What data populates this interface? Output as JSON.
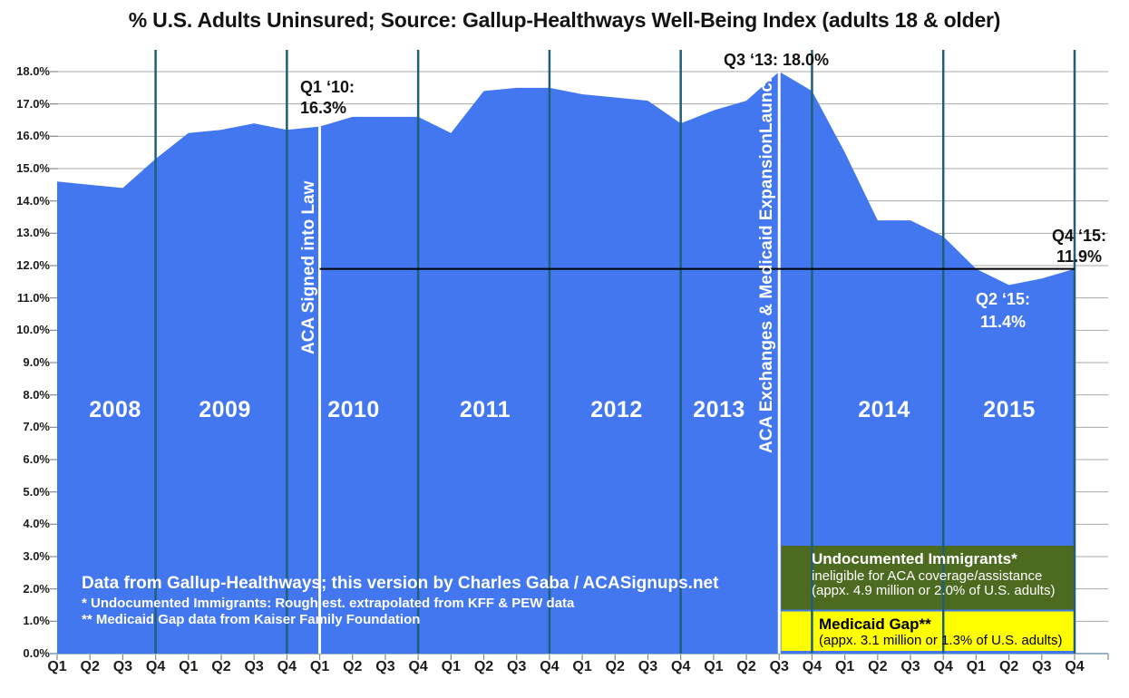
{
  "title": "% U.S. Adults Uninsured; Source: Gallup-Healthways Well-Being Index (adults 18 & older)",
  "chart_data": {
    "type": "area",
    "title": "% U.S. Adults Uninsured; Source: Gallup-Healthways Well-Being Index (adults 18 & older)",
    "years": [
      "2008",
      "2009",
      "2010",
      "2011",
      "2012",
      "2013",
      "2014",
      "2015"
    ],
    "quarter_labels_pattern": [
      "Q1",
      "Q2",
      "Q3",
      "Q4"
    ],
    "series": [
      {
        "name": "% of U.S. adults uninsured",
        "values": [
          14.6,
          14.5,
          14.4,
          15.3,
          16.1,
          16.2,
          16.4,
          16.2,
          16.3,
          16.6,
          16.6,
          16.6,
          16.1,
          17.4,
          17.5,
          17.5,
          17.3,
          17.2,
          17.1,
          16.4,
          16.8,
          17.1,
          18.0,
          17.4,
          15.5,
          13.4,
          13.4,
          12.9,
          11.9,
          11.4,
          11.6,
          11.9
        ]
      }
    ],
    "ylim": [
      0,
      18
    ],
    "y_tick_step": 1,
    "y_tick_labels": [
      "0.0%",
      "1.0%",
      "2.0%",
      "3.0%",
      "4.0%",
      "5.0%",
      "6.0%",
      "7.0%",
      "8.0%",
      "9.0%",
      "10.0%",
      "11.0%",
      "12.0%",
      "13.0%",
      "14.0%",
      "15.0%",
      "16.0%",
      "17.0%",
      "18.0%"
    ],
    "grid": true,
    "legend_position": "none",
    "area_color": "#4277f0",
    "year_separator_color": "#215e77",
    "grid_color": "#a8a8a8",
    "axis_color": "#9ab3c3",
    "reference_line": {
      "value_pct": 11.9,
      "color": "#000000",
      "starts_at": "Q1 2010"
    },
    "event_lines": [
      {
        "quarter_index": 8,
        "at": "Q1 2010",
        "label": "ACA Signed into Law",
        "color": "#ffffff"
      },
      {
        "quarter_index": 22,
        "at": "Q3 2013",
        "label": "ACA Exchanges & Medicaid ExpansionLaunch",
        "color": "#ffffff"
      }
    ]
  },
  "annotations": {
    "q1_2010": {
      "line1": "Q1 ‘10:",
      "line2": "16.3%"
    },
    "q3_2013": "Q3 ‘13: 18.0%",
    "q2_2015": {
      "line1": "Q2 ‘15:",
      "line2": "11.4%"
    },
    "q4_2015": {
      "line1": "Q4 ‘15:",
      "line2": "11.9%"
    }
  },
  "source_note": {
    "line1": "Data from Gallup-Healthways; this version by Charles Gaba / ACASignups.net",
    "line2": "* Undocumented Immigrants: Rough est. extrapolated from KFF & PEW data",
    "line3": "** Medicaid Gap data from Kaiser Family Foundation"
  },
  "callout_boxes": [
    {
      "title": "Undocumented Immigrants*",
      "line2": "ineligible for ACA coverage/assistance",
      "line3": "(appx. 4.9 million or 2.0% of U.S. adults)",
      "bg_color": "#4c6b20",
      "text_color": "#ffffff"
    },
    {
      "title": "Medicaid Gap**",
      "line2": "(appx. 3.1 million or 1.3% of U.S. adults)",
      "bg_color": "#ffff00",
      "text_color": "#000000"
    }
  ]
}
